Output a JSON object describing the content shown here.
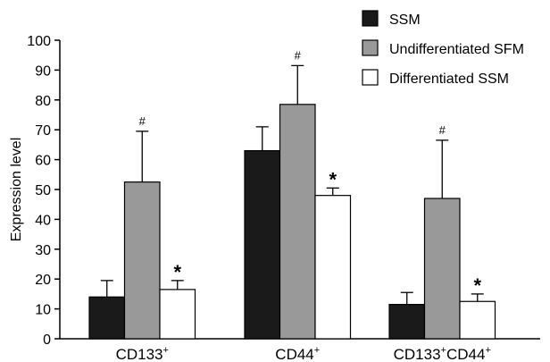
{
  "chart_data": {
    "type": "bar",
    "ylabel": "Expression level",
    "ylim": [
      0,
      100
    ],
    "yticks": [
      0,
      10,
      20,
      30,
      40,
      50,
      60,
      70,
      80,
      90,
      100
    ],
    "categories": [
      {
        "base": "CD133",
        "sup": "+",
        "parts": [
          {
            "t": "CD133",
            "s": "+"
          }
        ]
      },
      {
        "base": "CD44",
        "sup": "+",
        "parts": [
          {
            "t": "CD44",
            "s": "+"
          }
        ]
      },
      {
        "base": "CD133+CD44+",
        "sup": "",
        "parts": [
          {
            "t": "CD133",
            "s": "+"
          },
          {
            "t": "CD44",
            "s": "+"
          }
        ]
      }
    ],
    "series": [
      {
        "name": "SSM",
        "color": "#1a1a1a",
        "values": [
          14,
          63,
          11.5
        ],
        "errors": [
          19.5,
          71,
          15.5
        ],
        "annotations": [
          "",
          "",
          ""
        ]
      },
      {
        "name": "Undifferentiated SFM",
        "color": "#999999",
        "values": [
          52.5,
          78.5,
          47
        ],
        "errors": [
          69.5,
          91.5,
          66.5
        ],
        "annotations": [
          "#",
          "#",
          "#"
        ]
      },
      {
        "name": "Differentiated SSM",
        "color": "#ffffff",
        "values": [
          16.5,
          48,
          12.5
        ],
        "errors": [
          19.5,
          50.5,
          15
        ],
        "annotations": [
          "*",
          "*",
          "*"
        ]
      }
    ],
    "legend_position": "top-right"
  }
}
